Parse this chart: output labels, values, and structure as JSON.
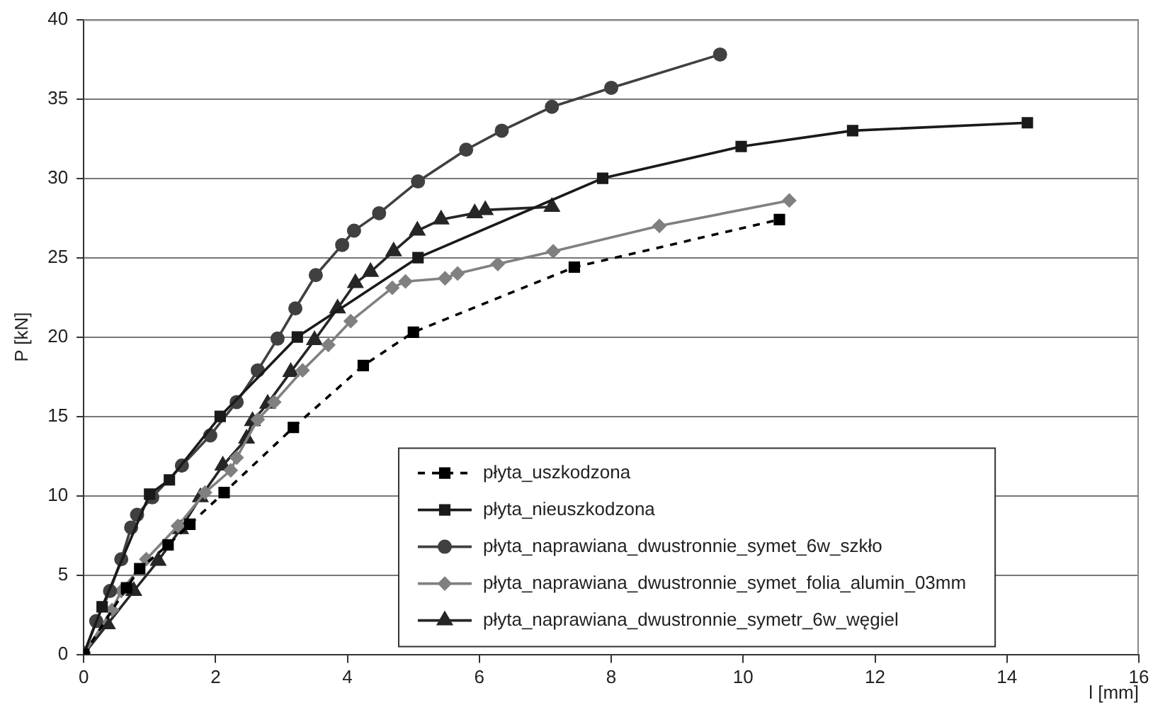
{
  "chart_data": {
    "type": "line",
    "xlabel": "l [mm]",
    "ylabel": "P [kN]",
    "xlim": [
      0,
      16
    ],
    "xticks": [
      0,
      2,
      4,
      6,
      8,
      10,
      12,
      14,
      16
    ],
    "ylim": [
      0,
      40
    ],
    "yticks": [
      0,
      5,
      10,
      15,
      20,
      25,
      30,
      35,
      40
    ],
    "grid": "y",
    "legend": "bottom",
    "series": [
      {
        "name": "płyta_uszkodzona",
        "color": "#000000",
        "marker": "square",
        "line_style": "dashed",
        "x": [
          0,
          0.65,
          0.85,
          1.28,
          1.61,
          2.13,
          3.18,
          4.24,
          5.0,
          7.44,
          10.55
        ],
        "values": [
          0,
          4.2,
          5.4,
          6.9,
          8.2,
          10.2,
          14.3,
          18.2,
          20.3,
          24.4,
          27.4
        ]
      },
      {
        "name": "płyta_nieuszkodzona",
        "color": "#1a1a1a",
        "marker": "square",
        "line_style": "solid",
        "x": [
          0,
          0.28,
          1.0,
          1.3,
          2.07,
          3.24,
          5.07,
          7.87,
          9.97,
          11.66,
          14.31
        ],
        "values": [
          0,
          3.0,
          10.1,
          11.0,
          15.0,
          20.0,
          25.0,
          30.0,
          32.0,
          33.0,
          33.5
        ]
      },
      {
        "name": "płyta_naprawiana_dwustronnie_symet_6w_szkło",
        "color": "#404040",
        "marker": "circle",
        "line_style": "solid",
        "x": [
          0,
          0.19,
          0.4,
          0.57,
          0.72,
          0.81,
          1.04,
          1.49,
          1.92,
          2.32,
          2.64,
          2.94,
          3.21,
          3.52,
          3.92,
          4.1,
          4.48,
          5.07,
          5.8,
          6.34,
          7.1,
          8.0,
          9.65
        ],
        "values": [
          0,
          2.1,
          4.0,
          6.0,
          8.0,
          8.8,
          9.9,
          11.9,
          13.8,
          15.9,
          17.9,
          19.9,
          21.8,
          23.9,
          25.8,
          26.7,
          27.8,
          29.8,
          31.8,
          33.0,
          34.5,
          35.7,
          37.8
        ]
      },
      {
        "name": "płyta_naprawiana_dwustronnie_symet_folia_alumin_03mm",
        "color": "#808080",
        "marker": "diamond",
        "line_style": "solid",
        "x": [
          0,
          0.43,
          0.57,
          0.95,
          1.43,
          1.84,
          2.23,
          2.32,
          2.64,
          2.89,
          3.32,
          3.71,
          4.05,
          4.68,
          4.88,
          5.48,
          5.67,
          6.28,
          7.12,
          8.73,
          10.7
        ],
        "values": [
          0,
          2.8,
          4.0,
          6.0,
          8.1,
          10.2,
          11.6,
          12.4,
          14.8,
          15.9,
          17.9,
          19.5,
          21.0,
          23.1,
          23.5,
          23.7,
          24.0,
          24.6,
          25.4,
          27.0,
          28.6
        ]
      },
      {
        "name": "płyta_naprawiana_dwustronnie_symetr_6w_węgiel",
        "color": "#262626",
        "marker": "triangle",
        "line_style": "solid",
        "x": [
          0,
          0.36,
          0.76,
          1.13,
          1.47,
          1.77,
          2.11,
          2.47,
          2.56,
          2.79,
          3.14,
          3.5,
          3.85,
          4.12,
          4.35,
          4.7,
          5.06,
          5.42,
          5.93,
          6.09,
          7.1
        ],
        "values": [
          0,
          1.9,
          4.0,
          5.9,
          7.9,
          9.9,
          11.9,
          13.6,
          14.7,
          15.8,
          17.8,
          19.8,
          21.8,
          23.4,
          24.1,
          25.4,
          26.7,
          27.4,
          27.8,
          28.0,
          28.2
        ]
      }
    ]
  }
}
